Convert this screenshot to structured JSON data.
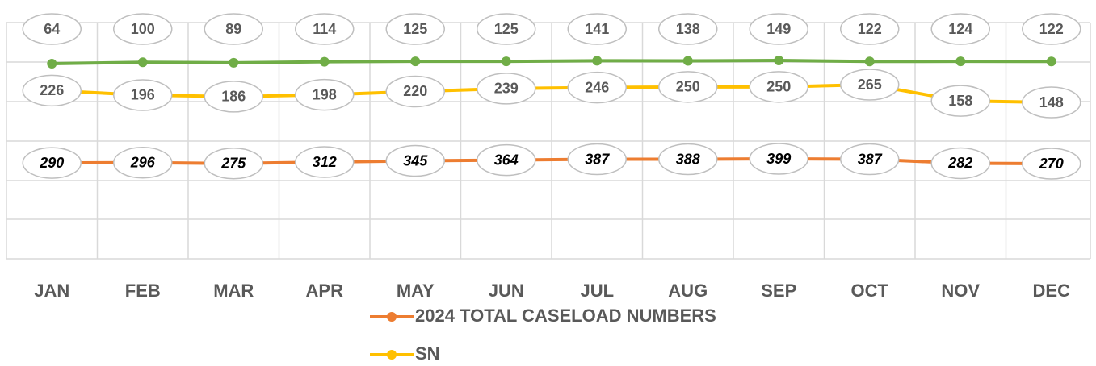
{
  "chart_data": {
    "type": "line",
    "categories": [
      "JAN",
      "FEB",
      "MAR",
      "APR",
      "MAY",
      "JUN",
      "JUL",
      "AUG",
      "SEP",
      "OCT",
      "NOV",
      "DEC"
    ],
    "series": [
      {
        "name": "2024 TOTAL CASELOAD NUMBERS",
        "color": "#ed7d31",
        "values": [
          290,
          296,
          275,
          312,
          345,
          364,
          387,
          388,
          399,
          387,
          282,
          270
        ]
      },
      {
        "name": "SN",
        "color": "#ffc000",
        "values": [
          226,
          196,
          186,
          198,
          220,
          239,
          246,
          250,
          250,
          265,
          158,
          148
        ]
      },
      {
        "name": null,
        "color": "#70ad47",
        "values": [
          64,
          100,
          89,
          114,
          125,
          125,
          141,
          138,
          149,
          122,
          124,
          122
        ]
      }
    ],
    "grid": true,
    "legend": "bottom"
  }
}
